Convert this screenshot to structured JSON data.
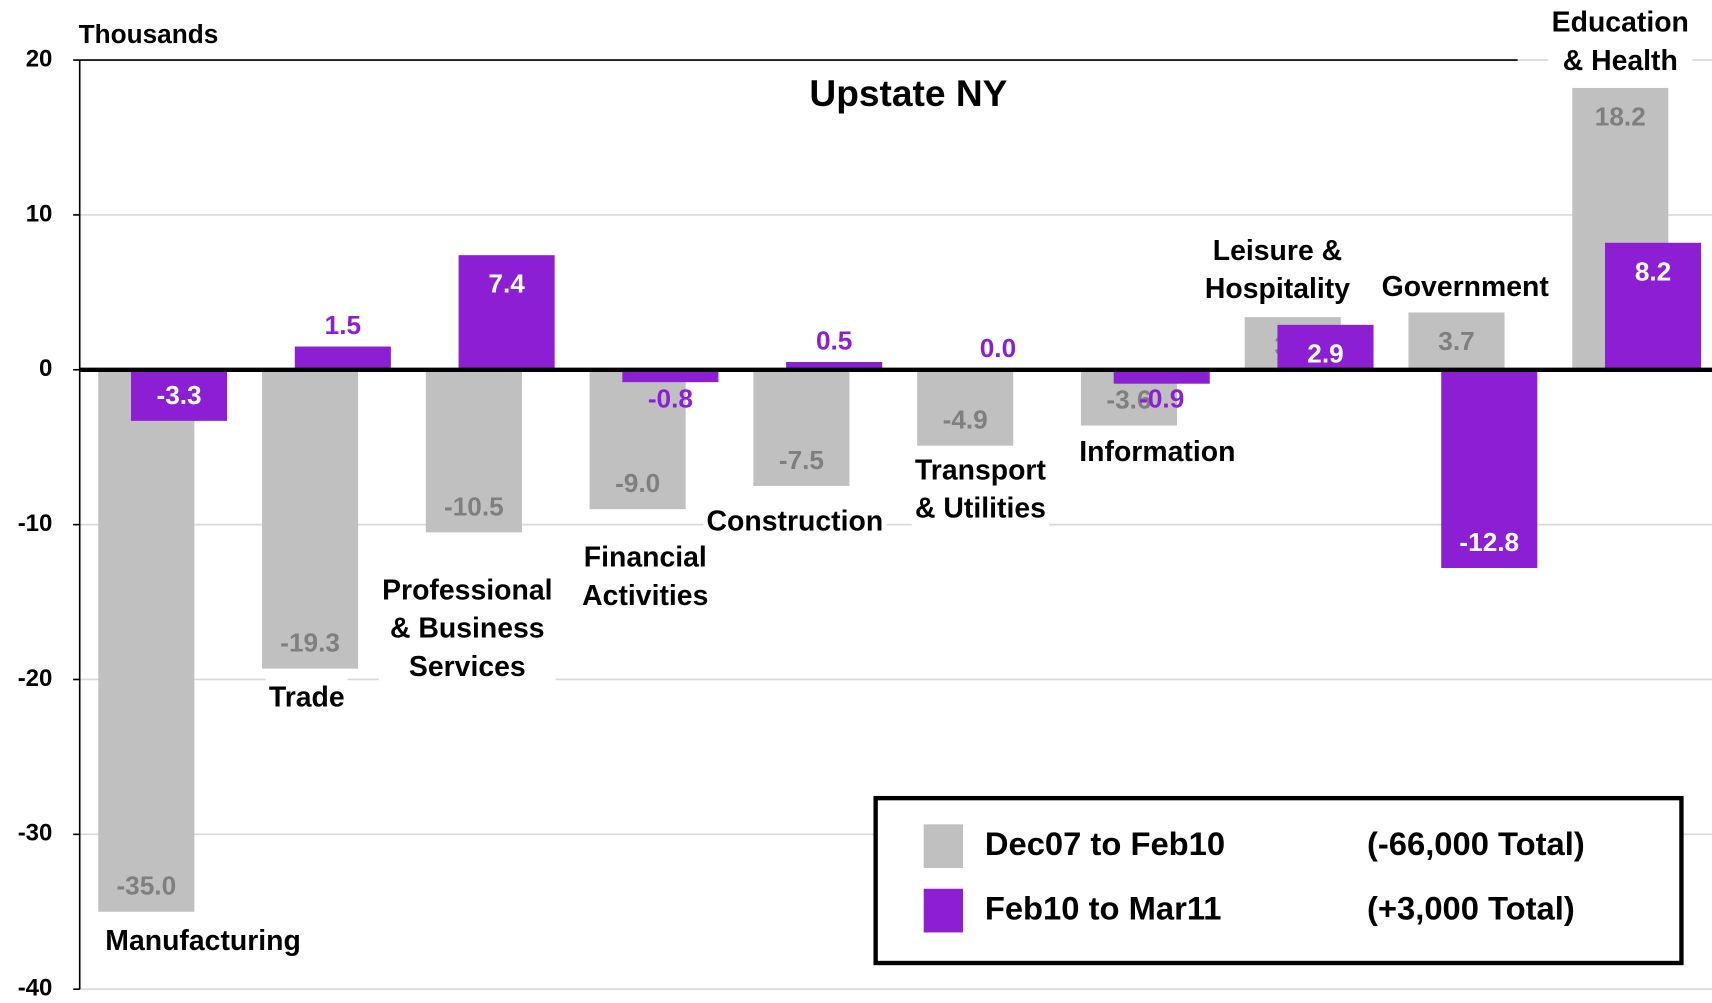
{
  "chart_data": {
    "type": "bar",
    "title": "Upstate NY",
    "y_label": "Thousands",
    "categories": [
      "Manufacturing",
      "Trade",
      "Professional\n& Business\nServices",
      "Financial\nActivities",
      "Construction",
      "Transport\n& Utilities",
      "Information",
      "Leisure &\nHospitality",
      "Government",
      "Education\n& Health"
    ],
    "series": [
      {
        "name": "Dec07 to Feb10",
        "total": "(-66,000 Total)",
        "color": "#c0c0c0",
        "values": [
          -35.0,
          -19.3,
          -10.5,
          -9.0,
          -7.5,
          -4.9,
          -3.6,
          3.4,
          3.7,
          18.2
        ],
        "value_labels": [
          "-35.0",
          "-19.3",
          "-10.5",
          "-9.0",
          "-7.5",
          "-4.9",
          "-3.6",
          "3.4",
          "3.7",
          "18.2"
        ]
      },
      {
        "name": "Feb10 to Mar11",
        "total": "(+3,000 Total)",
        "color": "#8c1fd4",
        "values": [
          -3.3,
          1.5,
          7.4,
          -0.8,
          0.5,
          0.0,
          -0.9,
          2.9,
          -12.8,
          8.2
        ],
        "value_labels": [
          "-3.3",
          "1.5",
          "7.4",
          "-0.8",
          "0.5",
          "0.0",
          "-0.9",
          "2.9",
          "-12.8",
          "8.2"
        ]
      }
    ],
    "ylim": [
      -40,
      20
    ],
    "yticks": [
      -40,
      -30,
      -20,
      -10,
      0,
      10,
      20
    ],
    "grid": true,
    "legend": "bottom right"
  }
}
